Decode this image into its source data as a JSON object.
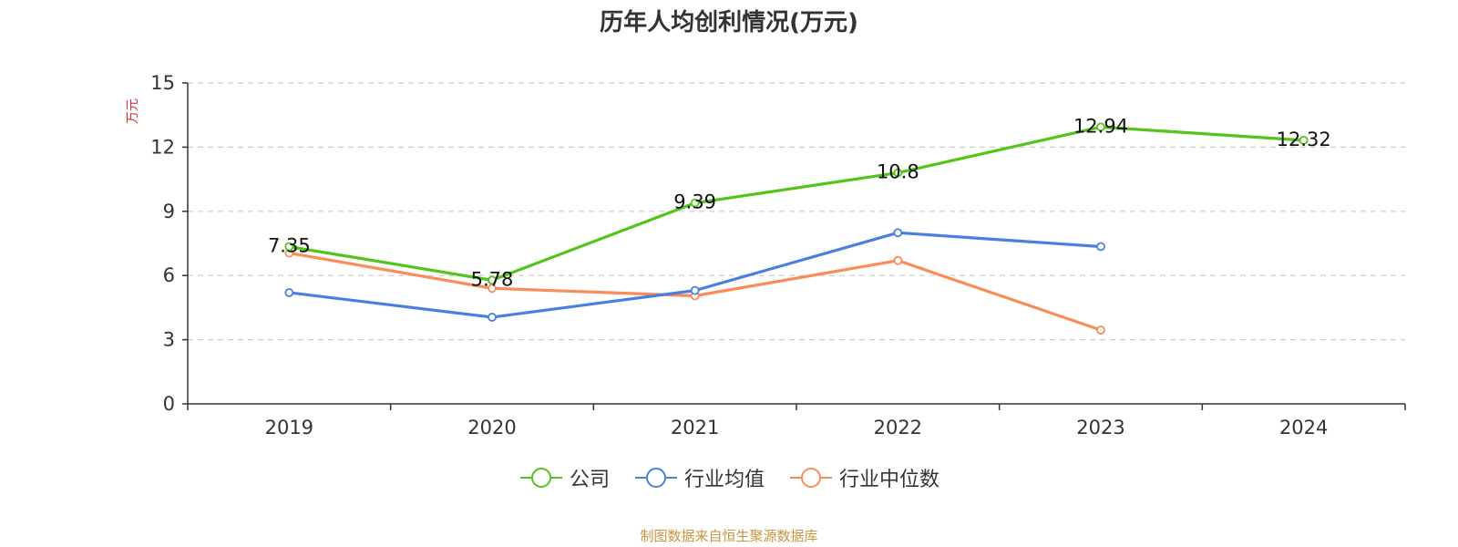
{
  "chart_data": {
    "type": "line",
    "title": "历年人均创利情况(万元)",
    "ylabel": "万元",
    "categories": [
      "2019",
      "2020",
      "2021",
      "2022",
      "2023",
      "2024"
    ],
    "ylim": [
      0,
      15
    ],
    "yticks": [
      0,
      3,
      6,
      9,
      12,
      15
    ],
    "grid": true,
    "legend_position": "bottom",
    "series": [
      {
        "name": "公司",
        "color": "#52c41a",
        "values": [
          7.35,
          5.78,
          9.39,
          10.8,
          12.94,
          12.32
        ],
        "labels": [
          "7.35",
          "5.78",
          "9.39",
          "10.8",
          "12.94",
          "12.32"
        ]
      },
      {
        "name": "行业均值",
        "color": "#4a7fe0",
        "values": [
          5.2,
          4.05,
          5.3,
          8.0,
          7.35,
          null
        ],
        "labels": null
      },
      {
        "name": "行业中位数",
        "color": "#fa8c5a",
        "values": [
          7.05,
          5.4,
          5.05,
          6.7,
          3.45,
          null
        ],
        "labels": null
      }
    ]
  },
  "footer": "制图数据来自恒生聚源数据库",
  "colors": {
    "axis": "#333333",
    "grid": "#cccccc",
    "ylabel": "#e0312d",
    "footer": "#c8963e"
  }
}
